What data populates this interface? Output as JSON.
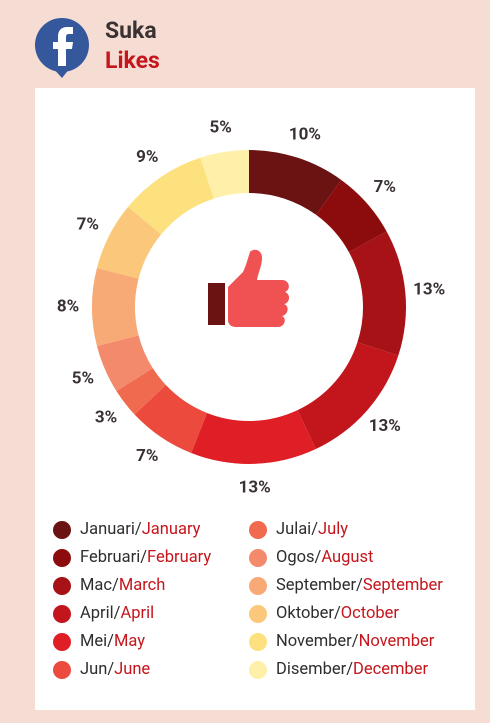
{
  "header": {
    "title": "Suka",
    "subtitle": "Likes"
  },
  "chart_data": {
    "type": "donut",
    "separator": "/",
    "categories": [
      [
        "Januari",
        "January"
      ],
      [
        "Februari",
        "February"
      ],
      [
        "Mac",
        "March"
      ],
      [
        "April",
        "April"
      ],
      [
        "Mei",
        "May"
      ],
      [
        "Jun",
        "June"
      ],
      [
        "Julai",
        "July"
      ],
      [
        "Ogos",
        "August"
      ],
      [
        "September",
        "September"
      ],
      [
        "Oktober",
        "October"
      ],
      [
        "November",
        "November"
      ],
      [
        "Disember",
        "December"
      ]
    ],
    "values": [
      10,
      7,
      13,
      13,
      13,
      7,
      3,
      5,
      8,
      7,
      9,
      5
    ],
    "value_labels": [
      "10%",
      "7%",
      "13%",
      "13%",
      "13%",
      "7%",
      "3%",
      "5%",
      "8%",
      "7%",
      "9%",
      "5%"
    ],
    "colors": [
      "#6b1212",
      "#8c0c0e",
      "#a61216",
      "#c2161c",
      "#e01e25",
      "#ec4a3d",
      "#ef6a4e",
      "#f38a6c",
      "#f7aa75",
      "#fbc87b",
      "#fde17e",
      "#fef0a9"
    ]
  }
}
